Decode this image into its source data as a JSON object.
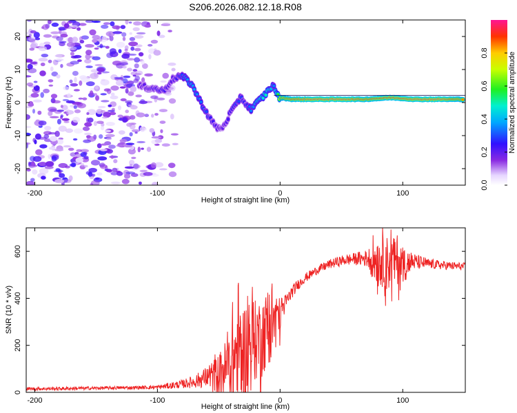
{
  "figure": {
    "title": "S206.2026.082.12.18.R08"
  },
  "chart_data": [
    {
      "type": "heatmap",
      "title": "",
      "xlabel": "Height of straight line (km)",
      "ylabel": "Frequency (Hz)",
      "xlim": [
        -207,
        151
      ],
      "ylim": [
        -25,
        25
      ],
      "xticks": [
        -200,
        -100,
        0,
        100
      ],
      "yticks": [
        -20,
        -10,
        0,
        10,
        20
      ],
      "colorbar": {
        "label": "Normalized spectral amplitude",
        "range": [
          0.0,
          1.0
        ],
        "ticks": [
          0.0,
          0.2,
          0.4,
          0.6,
          0.8
        ],
        "colormap": "rainbow (violet to red)"
      },
      "ridge": {
        "description": "dominant spectral line frequency vs height",
        "x": [
          -115,
          -105,
          -95,
          -88,
          -82,
          -78,
          -72,
          -66,
          -60,
          -56,
          -52,
          -48,
          -44,
          -40,
          -36,
          -32,
          -28,
          -24,
          -20,
          -16,
          -12,
          -8,
          -5,
          -2,
          0,
          10,
          30,
          50,
          70,
          90,
          110,
          130,
          150
        ],
        "y": [
          5,
          4.5,
          3.5,
          7,
          8,
          7.5,
          5.5,
          1,
          -3,
          -5.5,
          -7.5,
          -8,
          -6,
          -2.5,
          -1,
          2,
          -0.5,
          -2,
          -0.5,
          1,
          2.5,
          4.5,
          5,
          2,
          1.5,
          1,
          1,
          1,
          1,
          1.5,
          1,
          1,
          1
        ],
        "amplitude": [
          0.2,
          0.22,
          0.25,
          0.2,
          0.28,
          0.35,
          0.4,
          0.35,
          0.3,
          0.25,
          0.22,
          0.2,
          0.22,
          0.25,
          0.3,
          0.3,
          0.25,
          0.35,
          0.4,
          0.45,
          0.5,
          0.45,
          0.35,
          0.55,
          0.8,
          0.9,
          0.95,
          0.95,
          0.9,
          0.92,
          0.93,
          0.95,
          0.85
        ]
      },
      "noise_region_x": [
        -207,
        -85
      ]
    },
    {
      "type": "line",
      "title": "",
      "xlabel": "Height of straight line (km)",
      "ylabel": "SNR (10 * v/v)",
      "xlim": [
        -207,
        151
      ],
      "ylim": [
        0,
        700
      ],
      "xticks": [
        -200,
        -100,
        0,
        100
      ],
      "yticks": [
        0,
        200,
        400,
        600
      ],
      "color": "#ee2222",
      "series": [
        {
          "name": "SNR",
          "x": [
            -207,
            -180,
            -150,
            -120,
            -100,
            -90,
            -80,
            -70,
            -60,
            -50,
            -40,
            -35,
            -30,
            -25,
            -20,
            -15,
            -10,
            -5,
            0,
            5,
            10,
            15,
            20,
            30,
            40,
            50,
            60,
            70,
            80,
            90,
            100,
            110,
            120,
            130,
            140,
            151
          ],
          "y": [
            15,
            16,
            18,
            20,
            22,
            28,
            35,
            45,
            65,
            90,
            130,
            175,
            200,
            225,
            250,
            270,
            300,
            320,
            340,
            385,
            430,
            460,
            485,
            520,
            545,
            560,
            568,
            570,
            575,
            570,
            560,
            555,
            548,
            542,
            538,
            535
          ],
          "noise_amplitude": [
            8,
            8,
            8,
            8,
            10,
            15,
            20,
            30,
            50,
            80,
            160,
            220,
            200,
            180,
            160,
            140,
            150,
            120,
            70,
            40,
            30,
            25,
            22,
            20,
            22,
            25,
            28,
            40,
            90,
            110,
            70,
            40,
            25,
            22,
            20,
            18
          ]
        }
      ]
    }
  ]
}
